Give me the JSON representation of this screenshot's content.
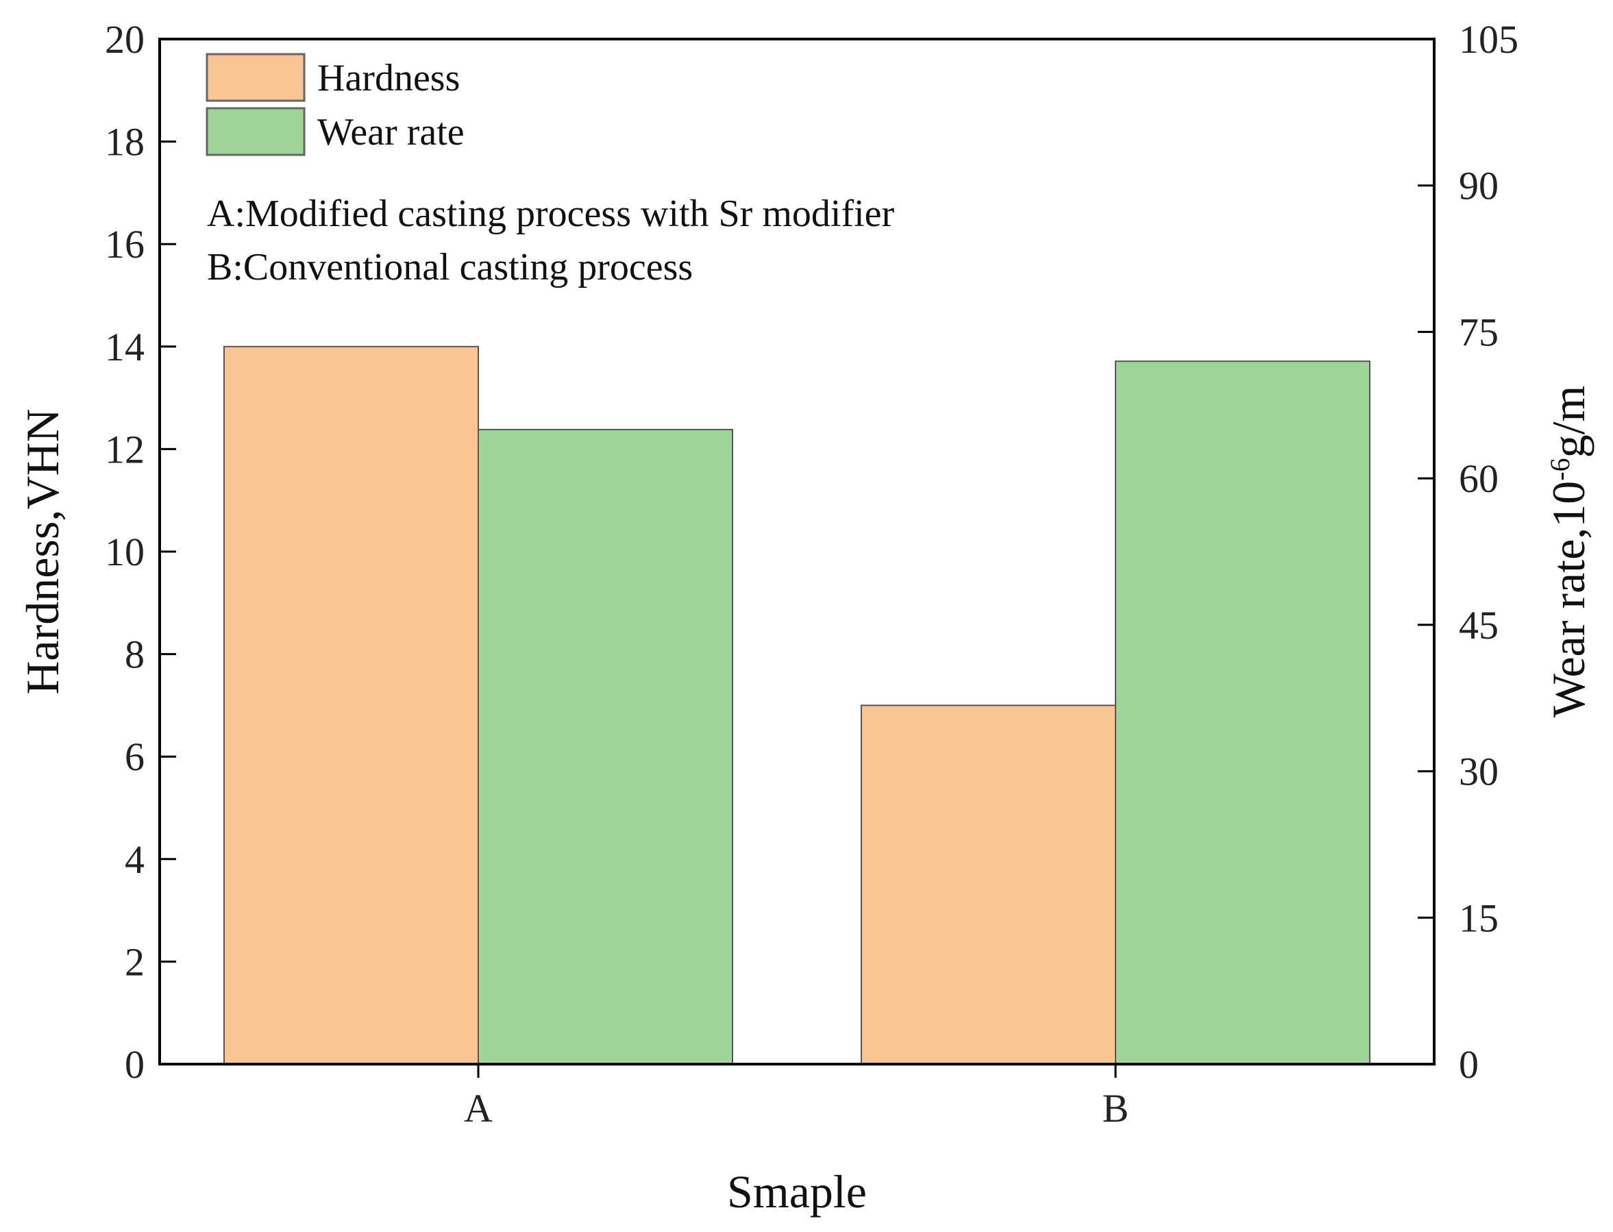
{
  "chart_data": {
    "type": "bar",
    "categories": [
      "A",
      "B"
    ],
    "series": [
      {
        "name": "Hardness",
        "axis": "left",
        "color": "#f9c595",
        "values": [
          14.0,
          7.0
        ]
      },
      {
        "name": "Wear rate",
        "axis": "right",
        "color": "#9ed69a",
        "values": [
          65,
          72
        ]
      }
    ],
    "xlabel": "Smaple",
    "ylabel": "Hardness,VHN",
    "y2label": {
      "base": "Wear rate,10",
      "sup": "-6",
      "unit": "g/m"
    },
    "ylim": [
      0,
      20
    ],
    "y2lim": [
      0,
      105
    ],
    "yticks": [
      0,
      2,
      4,
      6,
      8,
      10,
      12,
      14,
      16,
      18,
      20
    ],
    "y2ticks": [
      0,
      15,
      30,
      45,
      60,
      75,
      90,
      105
    ],
    "legend_position": "top-left",
    "annotations": [
      "A:Modified casting process with Sr modifier",
      "B:Conventional casting process"
    ]
  }
}
